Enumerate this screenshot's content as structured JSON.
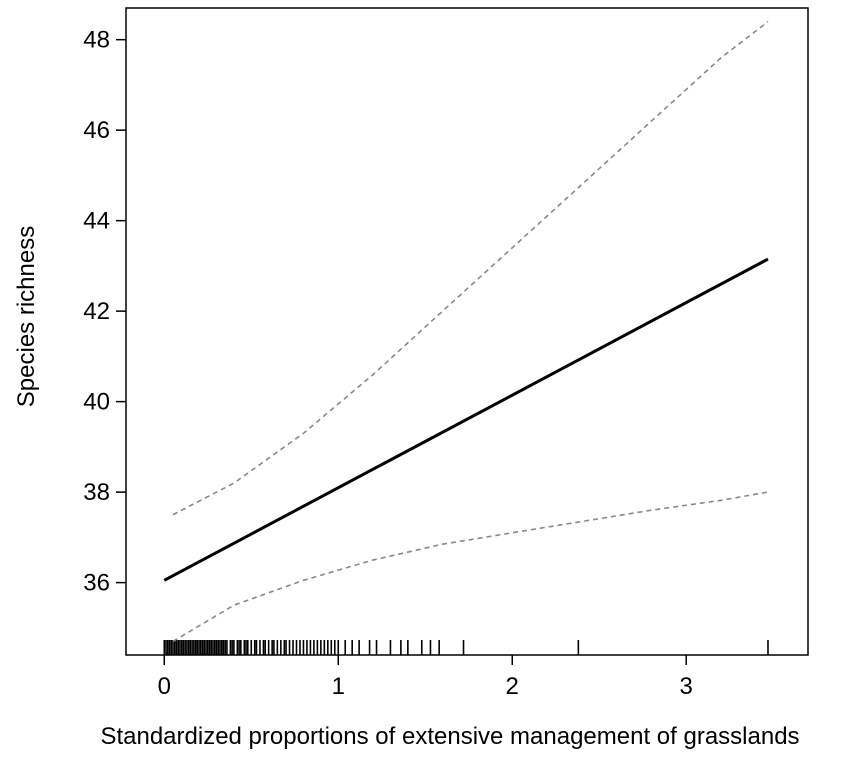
{
  "chart_data": {
    "type": "line",
    "title": "",
    "xlabel": "Standardized proportions of extensive management of grasslands",
    "ylabel": "Species richness",
    "xlim": [
      -0.22,
      3.7
    ],
    "ylim": [
      34.4,
      48.7
    ],
    "x_ticks": [
      0,
      1,
      2,
      3
    ],
    "x_tick_labels": [
      "0",
      "1",
      "2",
      "3"
    ],
    "y_ticks": [
      36,
      38,
      40,
      42,
      44,
      46,
      48
    ],
    "y_tick_labels": [
      "36",
      "38",
      "40",
      "42",
      "44",
      "46",
      "48"
    ],
    "grid": false,
    "legend": "none",
    "series": [
      {
        "style": "solid",
        "color": "#000000",
        "x": [
          0.0,
          3.47
        ],
        "y": [
          36.05,
          43.15
        ]
      },
      {
        "style": "dashed",
        "color": "#888888",
        "x": [
          0.05,
          0.4,
          0.8,
          1.2,
          1.6,
          2.0,
          2.4,
          2.8,
          3.2,
          3.47
        ],
        "y": [
          37.5,
          38.2,
          39.3,
          40.6,
          42.0,
          43.4,
          44.8,
          46.2,
          47.6,
          48.4
        ]
      },
      {
        "style": "dashed",
        "color": "#888888",
        "x": [
          0.05,
          0.4,
          0.8,
          1.2,
          1.6,
          2.0,
          2.4,
          2.8,
          3.2,
          3.47
        ],
        "y": [
          34.7,
          35.5,
          36.05,
          36.5,
          36.85,
          37.1,
          37.35,
          37.6,
          37.82,
          38.0
        ]
      }
    ],
    "rug_x": [
      0.0,
      0.01,
      0.02,
      0.03,
      0.04,
      0.05,
      0.06,
      0.07,
      0.08,
      0.09,
      0.1,
      0.11,
      0.12,
      0.13,
      0.14,
      0.15,
      0.16,
      0.17,
      0.18,
      0.19,
      0.2,
      0.21,
      0.22,
      0.23,
      0.24,
      0.25,
      0.26,
      0.27,
      0.28,
      0.29,
      0.3,
      0.31,
      0.32,
      0.33,
      0.34,
      0.35,
      0.36,
      0.38,
      0.39,
      0.4,
      0.42,
      0.43,
      0.44,
      0.46,
      0.47,
      0.48,
      0.5,
      0.52,
      0.53,
      0.55,
      0.57,
      0.58,
      0.6,
      0.62,
      0.63,
      0.65,
      0.67,
      0.69,
      0.7,
      0.72,
      0.74,
      0.76,
      0.78,
      0.8,
      0.82,
      0.84,
      0.86,
      0.88,
      0.9,
      0.92,
      0.94,
      0.96,
      0.98,
      1.0,
      1.04,
      1.08,
      1.12,
      1.18,
      1.22,
      1.3,
      1.36,
      1.4,
      1.48,
      1.53,
      1.58,
      1.72,
      2.38,
      3.47
    ]
  }
}
